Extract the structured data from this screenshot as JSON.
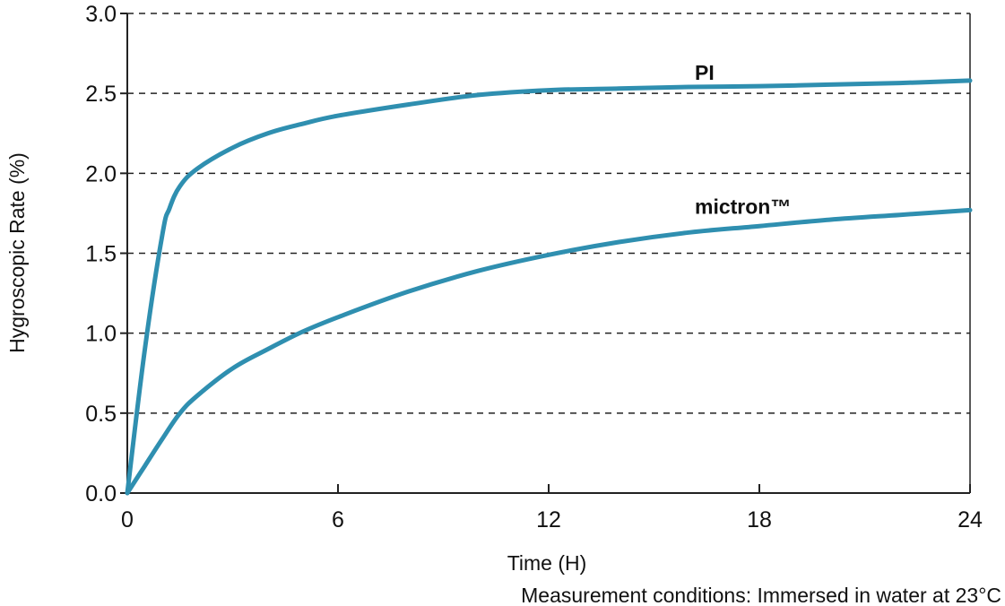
{
  "chart_data": {
    "type": "line",
    "title": "",
    "xlabel": "Time (H)",
    "ylabel": "Hygroscopic Rate (%)",
    "xlim": [
      0,
      24
    ],
    "ylim": [
      0,
      3.0
    ],
    "x_ticks": [
      0,
      6,
      12,
      18,
      24
    ],
    "y_ticks": [
      0.0,
      0.5,
      1.0,
      1.5,
      2.0,
      2.5,
      3.0
    ],
    "x_tick_labels": [
      "0",
      "6",
      "12",
      "18",
      "24"
    ],
    "y_tick_labels": [
      "0.0",
      "0.5",
      "1.0",
      "1.5",
      "2.0",
      "2.5",
      "3.0"
    ],
    "grid": "horizontal dashed",
    "line_color": "#2F8FB0",
    "series": [
      {
        "name": "PI",
        "x": [
          0,
          0.5,
          1.0,
          1.2,
          1.5,
          2,
          3,
          4,
          5,
          6,
          8,
          10,
          12,
          14,
          16,
          18,
          20,
          22,
          24
        ],
        "y": [
          0.0,
          0.9,
          1.62,
          1.78,
          1.92,
          2.03,
          2.16,
          2.25,
          2.31,
          2.36,
          2.43,
          2.49,
          2.52,
          2.53,
          2.54,
          2.545,
          2.555,
          2.565,
          2.58
        ]
      },
      {
        "name": "mictron™",
        "x": [
          0,
          0.5,
          1.0,
          1.5,
          2,
          3,
          4,
          5,
          6,
          8,
          10,
          12,
          14,
          16,
          18,
          20,
          22,
          24
        ],
        "y": [
          0.0,
          0.17,
          0.34,
          0.5,
          0.61,
          0.78,
          0.9,
          1.01,
          1.1,
          1.26,
          1.39,
          1.49,
          1.57,
          1.63,
          1.67,
          1.71,
          1.74,
          1.77
        ]
      }
    ],
    "annotations": [
      {
        "text": "PI",
        "series": "PI",
        "x": 16,
        "y": 2.62
      },
      {
        "text": "mictron™",
        "series": "mictron™",
        "x": 16,
        "y": 1.78
      }
    ],
    "note": "Measurement conditions: Immersed in water at 23°C"
  }
}
